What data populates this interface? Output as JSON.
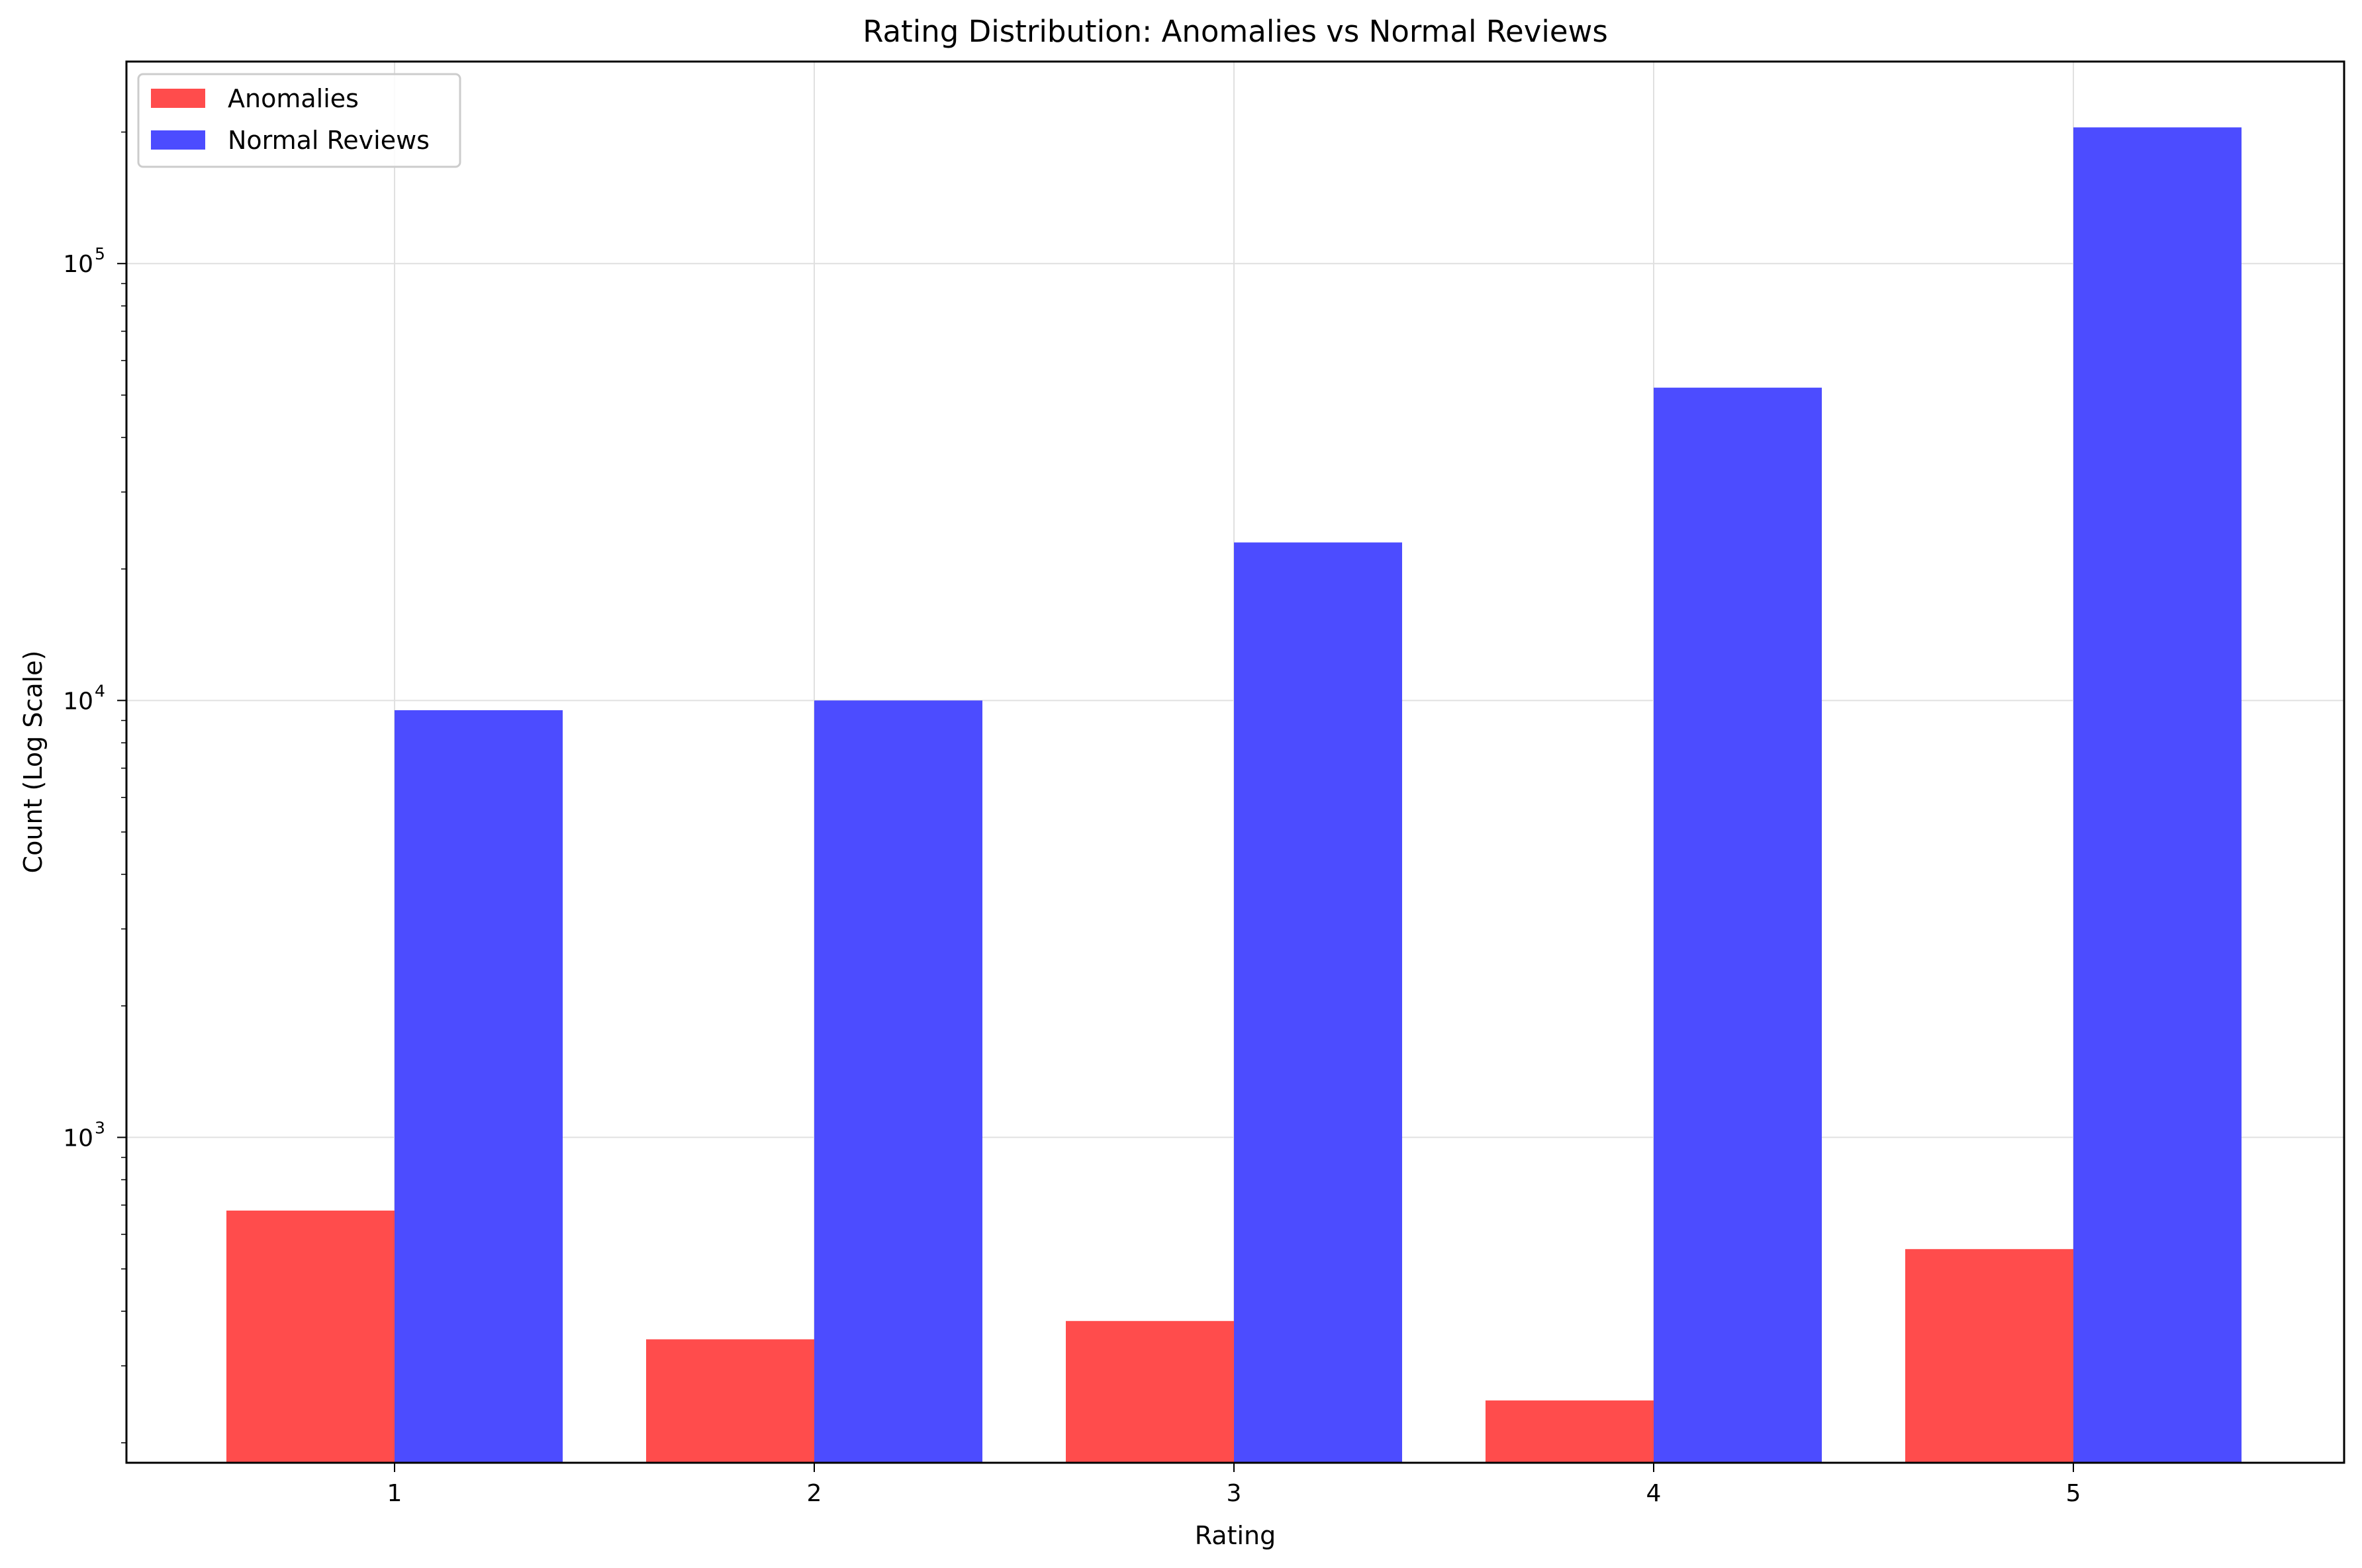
{
  "chart_data": {
    "type": "bar",
    "title": "Rating Distribution: Anomalies vs Normal Reviews",
    "xlabel": "Rating",
    "ylabel": "Count (Log Scale)",
    "categories": [
      "1",
      "2",
      "3",
      "4",
      "5"
    ],
    "series": [
      {
        "name": "Anomalies",
        "color": "#ff4c4c",
        "values": [
          680,
          345,
          380,
          250,
          555
        ]
      },
      {
        "name": "Normal Reviews",
        "color": "#4c4cff",
        "values": [
          9500,
          10000,
          23000,
          52000,
          205000
        ]
      }
    ],
    "yscale": "log",
    "ylim": [
      180,
      290000
    ],
    "yticks": [
      {
        "base": "10",
        "exp": "3",
        "value": 1000
      },
      {
        "base": "10",
        "exp": "4",
        "value": 10000
      },
      {
        "base": "10",
        "exp": "5",
        "value": 100000
      }
    ],
    "grid": true,
    "legend_position": "top-left"
  }
}
